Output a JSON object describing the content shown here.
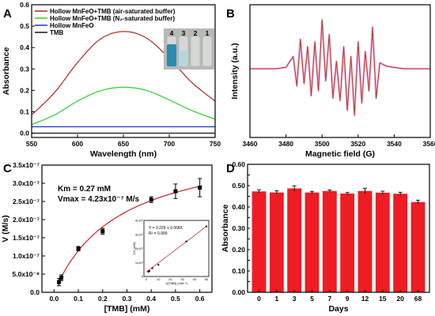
{
  "colors": {
    "airsat": "#b3352a",
    "n2sat": "#3fd135",
    "hollow": "#2b3fd6",
    "tmb": "#222222",
    "epr": "#b33a2a",
    "bar": "#ee1c23",
    "fit": "#cc3333",
    "vial_blue": "#2a8bb0"
  },
  "chart_data": [
    {
      "panel": "A",
      "type": "line",
      "xlabel": "Wavelength (nm)",
      "ylabel": "Absorbance",
      "xlim": [
        550,
        750
      ],
      "ylim": [
        -0.02,
        0.6
      ],
      "xticks": [
        "550",
        "600",
        "650",
        "700",
        "750"
      ],
      "yticks": [
        "0.0",
        "0.1",
        "0.2",
        "0.3",
        "0.4",
        "0.5",
        "0.6"
      ],
      "legend_position": "top-left",
      "series": [
        {
          "name": "Hollow MnFeO+TMB (air-saturated buffer)",
          "x": [
            550,
            575,
            600,
            625,
            650,
            675,
            700,
            725,
            750
          ],
          "values": [
            0.085,
            0.19,
            0.33,
            0.44,
            0.475,
            0.445,
            0.35,
            0.235,
            0.15
          ]
        },
        {
          "name": "Hollow MnFeO+TMB (N₂-saturated buffer)",
          "x": [
            550,
            575,
            600,
            625,
            650,
            675,
            700,
            725,
            750
          ],
          "values": [
            0.04,
            0.085,
            0.15,
            0.198,
            0.215,
            0.2,
            0.155,
            0.105,
            0.065
          ]
        },
        {
          "name": "Hollow MnFeO",
          "x": [
            550,
            750
          ],
          "values": [
            0.03,
            0.03
          ]
        },
        {
          "name": "TMB",
          "x": [
            550,
            750
          ],
          "values": [
            0.0,
            0.0
          ]
        }
      ],
      "inset_labels": [
        "4",
        "3",
        "2",
        "1"
      ]
    },
    {
      "panel": "B",
      "type": "line",
      "xlabel": "Magnetic field (G)",
      "ylabel": "Intensity (a.u.)",
      "xlim": [
        3460,
        3560
      ],
      "xticks": [
        "3460",
        "3480",
        "3500",
        "3520",
        "3540",
        "3560"
      ],
      "series": [
        {
          "x": [
            3460,
            3475,
            3480,
            3484,
            3486,
            3488,
            3490,
            3492,
            3494,
            3496,
            3498,
            3500,
            3502,
            3504,
            3506,
            3508,
            3510,
            3512,
            3514,
            3516,
            3518,
            3520,
            3522,
            3524,
            3526,
            3528,
            3530,
            3532,
            3536,
            3545,
            3560
          ],
          "values": [
            0,
            0,
            0.03,
            0.25,
            -0.35,
            0.6,
            -0.3,
            0.45,
            -0.55,
            0.55,
            -0.45,
            1.0,
            -0.25,
            0.7,
            -0.6,
            0.15,
            -0.65,
            0.45,
            -0.85,
            0.25,
            -0.95,
            0.55,
            -0.7,
            0.35,
            -0.45,
            0.85,
            -0.6,
            0.12,
            0.05,
            0,
            0
          ]
        }
      ]
    },
    {
      "panel": "C",
      "type": "scatter",
      "xlabel": "[TMB] (mM)",
      "ylabel": "V (M/s)",
      "xlim": [
        -0.05,
        0.65
      ],
      "ylim": [
        0,
        3.5e-07
      ],
      "xticks": [
        "0.0",
        "0.1",
        "0.2",
        "0.3",
        "0.4",
        "0.5",
        "0.6"
      ],
      "yticks": [
        "0.0",
        "5.0x10⁻⁸",
        "1.0x10⁻⁷",
        "1.5x10⁻⁷",
        "2.0x10⁻⁷",
        "2.5x10⁻⁷",
        "3.0x10⁻⁷",
        "3.5x10⁻⁷"
      ],
      "x": [
        0.02,
        0.03,
        0.1,
        0.2,
        0.4,
        0.5,
        0.6
      ],
      "values": [
        2.8e-08,
        4e-08,
        1.2e-07,
        1.68e-07,
        2.55e-07,
        2.78e-07,
        2.88e-07
      ],
      "errors": [
        1e-08,
        8e-09,
        6e-09,
        8e-09,
        8e-09,
        2e-08,
        2.5e-08
      ],
      "km": 0.27,
      "vmax": 4.23e-07,
      "ann_km": "Km = 0.27 mM",
      "ann_vmax": "Vmax = 4.23x10⁻⁷ M/s",
      "inset": {
        "type": "scatter",
        "xlabel": "1/[TMB] (mM⁻¹)",
        "ylabel": "1/V (s/M)",
        "xticks": [
          "0",
          "10",
          "20",
          "30",
          "40",
          "50"
        ],
        "yticks": [
          "0",
          "1x10⁷",
          "2x10⁷",
          "3x10⁷",
          "4x10⁷",
          "5x10⁷"
        ],
        "x": [
          1.67,
          2.0,
          2.5,
          5.0,
          10.0,
          33.3,
          50.0
        ],
        "values": [
          3470000.0,
          3600000.0,
          3920000.0,
          5950000.0,
          8330000.0,
          25000000.0,
          35700000.0
        ],
        "equation": "Y = 0.229 + 0.068X",
        "r2": "R² = 0.999"
      }
    },
    {
      "panel": "D",
      "type": "bar",
      "xlabel": "Days",
      "ylabel": "Absorbance",
      "categories": [
        "0",
        "1",
        "3",
        "5",
        "7",
        "9",
        "12",
        "15",
        "20",
        "68"
      ],
      "values": [
        0.473,
        0.468,
        0.487,
        0.468,
        0.475,
        0.463,
        0.475,
        0.467,
        0.462,
        0.423
      ],
      "errors": [
        0.008,
        0.008,
        0.012,
        0.005,
        0.005,
        0.005,
        0.013,
        0.007,
        0.007,
        0.009
      ],
      "ylim": [
        0,
        0.6
      ],
      "yticks": [
        "0.00",
        "0.05",
        "0.10",
        "0.15",
        "0.20",
        "0.25",
        "0.30",
        "0.35",
        "0.40",
        "0.45",
        "0.50",
        "0.55",
        "0.60"
      ]
    }
  ]
}
